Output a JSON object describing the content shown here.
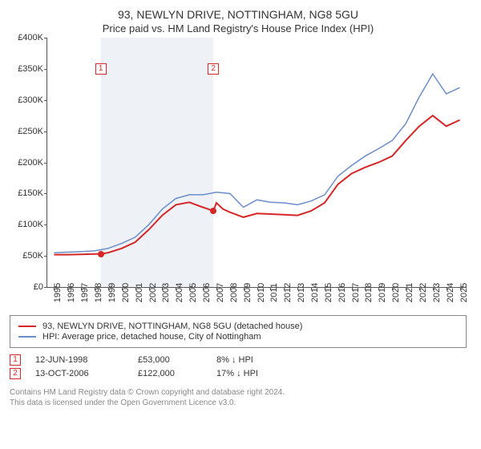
{
  "title": "93, NEWLYN DRIVE, NOTTINGHAM, NG8 5GU",
  "subtitle": "Price paid vs. HM Land Registry's House Price Index (HPI)",
  "chart": {
    "type": "line",
    "background_color": "#ffffff",
    "shade_color": "#eef2f6",
    "shade_from": 1998.45,
    "shade_to": 2006.78,
    "x_min": 1994.5,
    "x_max": 2025.5,
    "x_ticks": [
      1995,
      1996,
      1997,
      1998,
      1999,
      2000,
      2001,
      2002,
      2003,
      2004,
      2005,
      2006,
      2007,
      2008,
      2009,
      2010,
      2011,
      2012,
      2013,
      2014,
      2015,
      2016,
      2017,
      2018,
      2019,
      2020,
      2021,
      2022,
      2023,
      2024,
      2025
    ],
    "y_min": 0,
    "y_max": 400000,
    "y_ticks": [
      0,
      50000,
      100000,
      150000,
      200000,
      250000,
      300000,
      350000,
      400000
    ],
    "y_tick_labels": [
      "£0",
      "£50K",
      "£100K",
      "£150K",
      "£200K",
      "£250K",
      "£300K",
      "£350K",
      "£400K"
    ],
    "series": [
      {
        "name": "93, NEWLYN DRIVE, NOTTINGHAM, NG8 5GU (detached house)",
        "color": "#d62728",
        "width": 2,
        "points": [
          [
            1995,
            52000
          ],
          [
            1996,
            52000
          ],
          [
            1997,
            52500
          ],
          [
            1998,
            53000
          ],
          [
            1998.45,
            53000
          ],
          [
            1999,
            55000
          ],
          [
            2000,
            62000
          ],
          [
            2001,
            72000
          ],
          [
            2002,
            92000
          ],
          [
            2003,
            115000
          ],
          [
            2004,
            132000
          ],
          [
            2005,
            136000
          ],
          [
            2006,
            128000
          ],
          [
            2006.78,
            122000
          ],
          [
            2007,
            135000
          ],
          [
            2007.5,
            125000
          ],
          [
            2008,
            120000
          ],
          [
            2009,
            112000
          ],
          [
            2010,
            118000
          ],
          [
            2011,
            117000
          ],
          [
            2012,
            116000
          ],
          [
            2013,
            115000
          ],
          [
            2014,
            122000
          ],
          [
            2015,
            135000
          ],
          [
            2016,
            165000
          ],
          [
            2017,
            182000
          ],
          [
            2018,
            192000
          ],
          [
            2019,
            200000
          ],
          [
            2020,
            210000
          ],
          [
            2021,
            235000
          ],
          [
            2022,
            258000
          ],
          [
            2023,
            275000
          ],
          [
            2024,
            258000
          ],
          [
            2025,
            268000
          ]
        ]
      },
      {
        "name": "HPI: Average price, detached house, City of Nottingham",
        "color": "#6b8ecb",
        "width": 1.5,
        "points": [
          [
            1995,
            55000
          ],
          [
            1996,
            56000
          ],
          [
            1997,
            57000
          ],
          [
            1998,
            58000
          ],
          [
            1999,
            62000
          ],
          [
            2000,
            70000
          ],
          [
            2001,
            80000
          ],
          [
            2002,
            100000
          ],
          [
            2003,
            125000
          ],
          [
            2004,
            142000
          ],
          [
            2005,
            148000
          ],
          [
            2006,
            148000
          ],
          [
            2007,
            152000
          ],
          [
            2008,
            150000
          ],
          [
            2009,
            128000
          ],
          [
            2010,
            140000
          ],
          [
            2011,
            136000
          ],
          [
            2012,
            135000
          ],
          [
            2013,
            132000
          ],
          [
            2014,
            138000
          ],
          [
            2015,
            148000
          ],
          [
            2016,
            178000
          ],
          [
            2017,
            195000
          ],
          [
            2018,
            210000
          ],
          [
            2019,
            222000
          ],
          [
            2020,
            235000
          ],
          [
            2021,
            262000
          ],
          [
            2022,
            305000
          ],
          [
            2023,
            342000
          ],
          [
            2024,
            310000
          ],
          [
            2025,
            320000
          ]
        ]
      }
    ],
    "sale_markers": [
      {
        "n": 1,
        "x": 1998.45,
        "y": 53000,
        "label_y": 350000
      },
      {
        "n": 2,
        "x": 2006.78,
        "y": 122000,
        "label_y": 350000
      }
    ]
  },
  "legend": {
    "items": [
      {
        "color": "#d62728",
        "width": 2,
        "label": "93, NEWLYN DRIVE, NOTTINGHAM, NG8 5GU (detached house)"
      },
      {
        "color": "#6b8ecb",
        "width": 1.5,
        "label": "HPI: Average price, detached house, City of Nottingham"
      }
    ]
  },
  "sales": [
    {
      "n": "1",
      "date": "12-JUN-1998",
      "price": "£53,000",
      "hpi": "8% ↓ HPI"
    },
    {
      "n": "2",
      "date": "13-OCT-2006",
      "price": "£122,000",
      "hpi": "17% ↓ HPI"
    }
  ],
  "footer_line1": "Contains HM Land Registry data © Crown copyright and database right 2024.",
  "footer_line2": "This data is licensed under the Open Government Licence v3.0."
}
